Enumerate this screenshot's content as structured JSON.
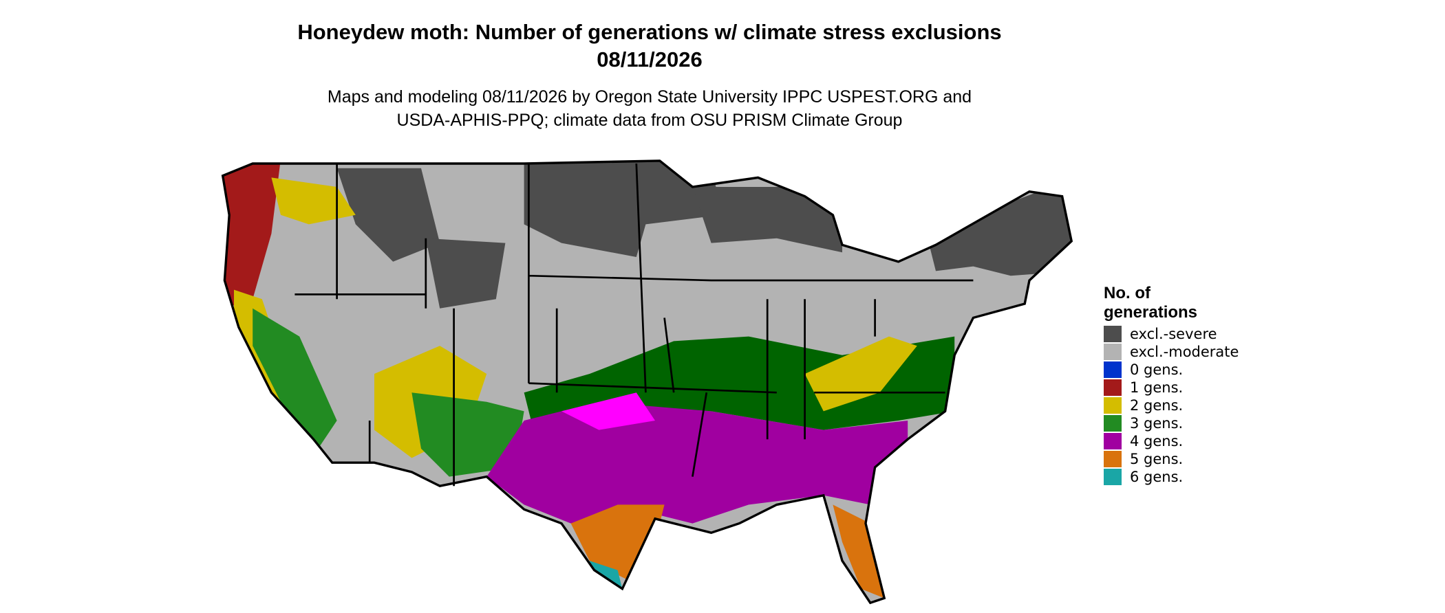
{
  "title": [
    "Honeydew moth: Number of generations w/ climate stress exclusions",
    "08/11/2026"
  ],
  "subtitle": [
    "Maps and modeling 08/11/2026 by Oregon State University IPPC USPEST.ORG and",
    "USDA-APHIS-PPQ; climate data from OSU PRISM Climate Group"
  ],
  "legend": {
    "title": [
      "No. of",
      "generations"
    ],
    "items": [
      {
        "label": "excl.-severe",
        "color": "#4d4d4d"
      },
      {
        "label": "excl.-moderate",
        "color": "#b3b3b3"
      },
      {
        "label": "0 gens.",
        "color": "#0033cc"
      },
      {
        "label": "1 gens.",
        "color": "#a31a1a"
      },
      {
        "label": "2 gens.",
        "color": "#d4bd00"
      },
      {
        "label": "3 gens.",
        "color": "#228b22"
      },
      {
        "label": "4 gens.",
        "color": "#a000a0"
      },
      {
        "label": "5 gens.",
        "color": "#d9730d"
      },
      {
        "label": "6 gens.",
        "color": "#1aa6a6"
      }
    ]
  }
}
